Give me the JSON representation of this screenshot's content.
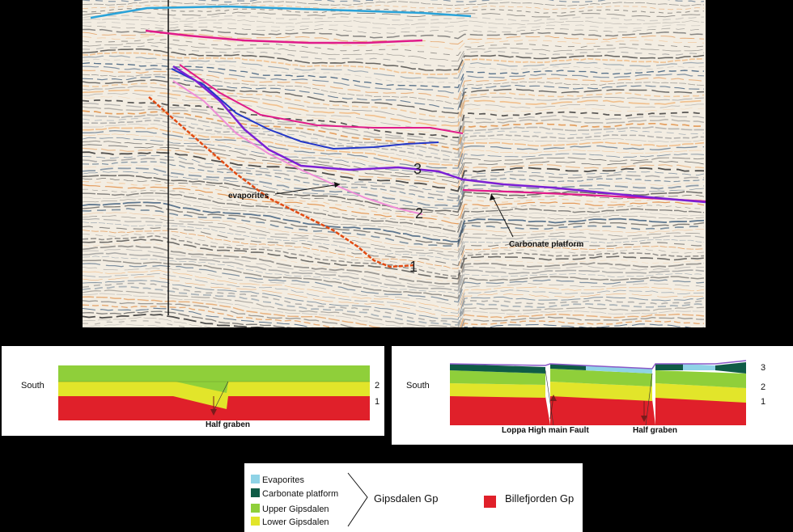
{
  "seismic": {
    "labels": {
      "h1": "1",
      "h2": "2",
      "h3": "3",
      "evaporites": "evaporites",
      "carbonate": "Carbonate platform"
    }
  },
  "section_left": {
    "south": "South",
    "n2": "2",
    "n1": "1",
    "half_graben": "Half graben"
  },
  "section_right": {
    "south": "South",
    "n3": "3",
    "n2": "2",
    "n1": "1",
    "loppa": "Loppa High main Fault",
    "half_graben": "Half graben"
  },
  "legend": {
    "items": [
      {
        "label": "Evaporites",
        "color": "#8fd3e6"
      },
      {
        "label": "Carbonate platform",
        "color": "#0f5b46"
      },
      {
        "label": "Upper Gipsdalen",
        "color": "#8fcf3a"
      },
      {
        "label": "Lower Gipsdalen",
        "color": "#e2e52a"
      }
    ],
    "group": "Gipsdalen Gp",
    "billefjorden": {
      "label": "Billefjorden Gp",
      "color": "#e0202a"
    }
  }
}
